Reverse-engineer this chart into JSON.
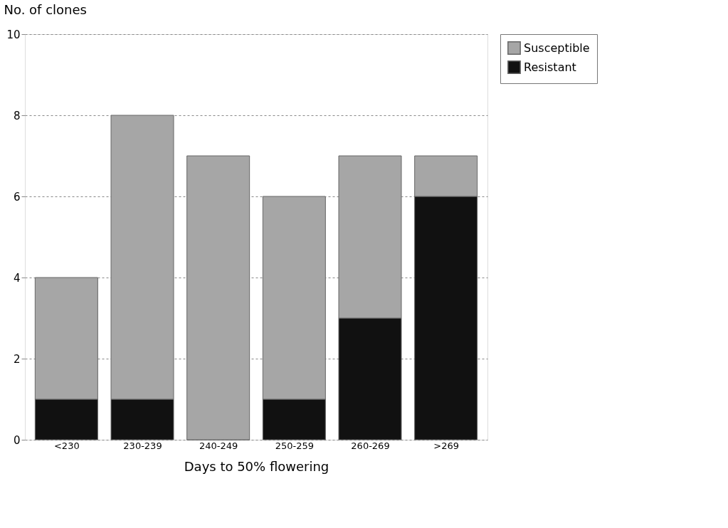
{
  "chart_data": {
    "type": "bar",
    "stacked": true,
    "xlabel": "Days to 50% flowering",
    "ylabel": "No. of clones",
    "categories": [
      "<230",
      "230-239",
      "240-249",
      "250-259",
      "260-269",
      ">269"
    ],
    "series": [
      {
        "name": "Resistant",
        "color": "#111111",
        "values": [
          1,
          1,
          0,
          1,
          3,
          6
        ]
      },
      {
        "name": "Susceptible",
        "color": "#a6a6a6",
        "values": [
          3,
          7,
          7,
          5,
          4,
          1
        ]
      }
    ],
    "ylim": [
      0,
      10
    ],
    "yticks": [
      0,
      2,
      4,
      6,
      8,
      10
    ],
    "grid": "y",
    "legend": "right"
  }
}
